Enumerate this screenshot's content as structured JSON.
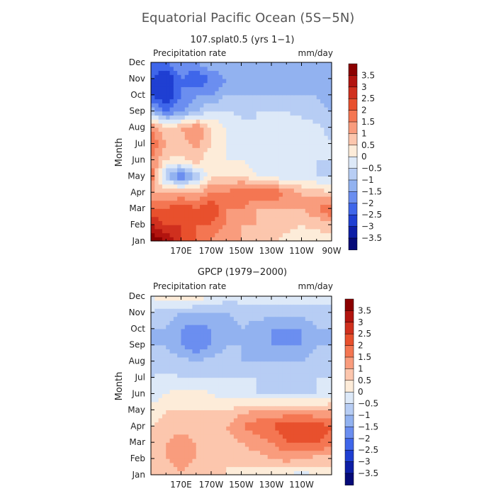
{
  "figure": {
    "title": "Equatorial Pacific Ocean (5S−5N)"
  },
  "colorbar_levels": [
    "3.5",
    "3",
    "2.5",
    "2",
    "1.5",
    "1",
    "0.5",
    "0",
    "−0.5",
    "−1",
    "−1.5",
    "−2",
    "−2.5",
    "−3",
    "−3.5"
  ],
  "colorbar_colors": [
    "#8b0000",
    "#b2140f",
    "#d0301e",
    "#e8502d",
    "#f47652",
    "#f99c7d",
    "#fcc6ad",
    "#fdecd9",
    "#dde9f8",
    "#b7cdf4",
    "#92b2f0",
    "#6b8ef0",
    "#3f66ea",
    "#1f3fd2",
    "#0d1ea6",
    "#050a78"
  ],
  "chart_data": [
    {
      "type": "heatmap",
      "subtitle": "107.splat0.5 (yrs 1−1)",
      "variable_label": "Precipitation rate",
      "units": "mm/day",
      "ylabel": "Month",
      "xlabel": "",
      "x_ticks": [
        "170E",
        "170W",
        "150W",
        "130W",
        "110W",
        "90W"
      ],
      "x_tick_lons": [
        170,
        190,
        210,
        230,
        250,
        270
      ],
      "y_ticks": [
        "Jan",
        "Feb",
        "Mar",
        "Apr",
        "May",
        "Jun",
        "Jul",
        "Aug",
        "Sep",
        "Oct",
        "Nov",
        "Dec"
      ],
      "xlim": [
        150,
        270
      ],
      "ylim": [
        1,
        12
      ],
      "clim": [
        -3.5,
        3.5
      ],
      "x": [
        150,
        160,
        170,
        180,
        190,
        200,
        210,
        220,
        230,
        240,
        250,
        260,
        270
      ],
      "values": [
        [
          4.0,
          3.5,
          2.5,
          2.0,
          1.5,
          1.0,
          1.0,
          0.8,
          0.6,
          0.4,
          0.3,
          0.3,
          0.2
        ],
        [
          3.0,
          2.5,
          2.5,
          2.0,
          2.0,
          1.5,
          1.0,
          1.0,
          0.8,
          0.6,
          0.5,
          0.6,
          0.8
        ],
        [
          2.0,
          2.0,
          2.5,
          2.0,
          2.5,
          1.5,
          1.5,
          1.0,
          1.0,
          1.0,
          1.0,
          1.5,
          2.0
        ],
        [
          1.0,
          1.0,
          1.0,
          1.0,
          1.5,
          1.5,
          2.0,
          2.0,
          2.0,
          1.5,
          1.0,
          0.8,
          0.5
        ],
        [
          2.0,
          -1.0,
          -2.0,
          -1.0,
          0.5,
          0.5,
          0.5,
          0.0,
          -0.2,
          -0.3,
          -0.4,
          -0.5,
          -0.5
        ],
        [
          1.5,
          0.5,
          0.3,
          0.8,
          0.0,
          0.0,
          0.0,
          -0.2,
          -0.3,
          -0.4,
          -0.4,
          -0.5,
          -0.5
        ],
        [
          2.0,
          1.0,
          0.8,
          1.2,
          0.5,
          0.0,
          -0.3,
          -0.3,
          -0.3,
          -0.4,
          -0.4,
          -0.4,
          -0.5
        ],
        [
          1.5,
          0.5,
          1.0,
          1.5,
          0.5,
          0.0,
          -0.4,
          -0.5,
          -0.3,
          -0.3,
          -0.3,
          -0.4,
          -0.6
        ],
        [
          -1.0,
          -2.0,
          -1.5,
          -1.0,
          -0.5,
          -0.5,
          -0.6,
          -0.5,
          -0.5,
          -0.5,
          -0.6,
          -0.8,
          -1.0
        ],
        [
          -2.5,
          -3.0,
          -2.0,
          -1.5,
          -1.5,
          -1.0,
          -1.0,
          -1.0,
          -1.0,
          -1.0,
          -1.0,
          -1.0,
          -1.2
        ],
        [
          -2.5,
          -3.0,
          -2.0,
          -2.5,
          -2.0,
          -1.5,
          -1.5,
          -1.0,
          -1.0,
          -1.0,
          -1.0,
          -1.0,
          -1.5
        ],
        [
          -2.0,
          -2.0,
          -1.5,
          -1.5,
          -1.0,
          -1.0,
          -1.0,
          -1.0,
          -1.0,
          -1.0,
          -1.0,
          -1.0,
          -1.0
        ]
      ]
    },
    {
      "type": "heatmap",
      "subtitle": "GPCP (1979−2000)",
      "variable_label": "Precipitation rate",
      "units": "mm/day",
      "ylabel": "Month",
      "xlabel": "",
      "x_ticks": [
        "170E",
        "170W",
        "150W",
        "130W",
        "110W"
      ],
      "x_tick_lons": [
        170,
        190,
        210,
        230,
        250
      ],
      "y_ticks": [
        "Jan",
        "Feb",
        "Mar",
        "Apr",
        "May",
        "Jun",
        "Jul",
        "Aug",
        "Sep",
        "Oct",
        "Nov",
        "Dec"
      ],
      "xlim": [
        150,
        270
      ],
      "ylim": [
        1,
        12
      ],
      "clim": [
        -3.5,
        3.5
      ],
      "x": [
        150,
        160,
        170,
        180,
        190,
        200,
        210,
        220,
        230,
        240,
        250,
        260,
        270
      ],
      "values": [
        [
          0.5,
          0.8,
          1.0,
          0.8,
          0.5,
          0.5,
          0.3,
          0.2,
          0.0,
          0.0,
          -0.3,
          0.0,
          0.2
        ],
        [
          0.5,
          1.0,
          1.2,
          1.0,
          0.8,
          0.5,
          0.8,
          0.8,
          1.0,
          1.2,
          1.0,
          0.8,
          0.8
        ],
        [
          0.8,
          1.0,
          1.2,
          1.0,
          1.0,
          0.8,
          1.0,
          1.2,
          1.5,
          2.0,
          2.0,
          2.0,
          1.8
        ],
        [
          0.5,
          0.8,
          0.8,
          0.8,
          1.0,
          1.0,
          1.5,
          1.8,
          2.0,
          2.5,
          2.5,
          2.3,
          2.0
        ],
        [
          0.2,
          0.5,
          0.5,
          0.5,
          0.5,
          0.5,
          0.8,
          1.0,
          1.0,
          1.0,
          1.0,
          1.0,
          1.0
        ],
        [
          -0.3,
          0.0,
          0.2,
          0.2,
          0.0,
          -0.3,
          -0.3,
          -0.5,
          -0.5,
          -0.5,
          -0.5,
          -0.5,
          -0.3
        ],
        [
          -0.5,
          -0.3,
          -0.5,
          -0.5,
          -0.5,
          -0.5,
          -0.5,
          -0.5,
          -0.5,
          -0.5,
          -0.5,
          -0.5,
          -0.5
        ],
        [
          -0.8,
          -0.8,
          -0.8,
          -1.0,
          -0.8,
          -0.8,
          -1.0,
          -1.0,
          -1.0,
          -1.0,
          -1.0,
          -0.8,
          -0.8
        ],
        [
          -1.0,
          -1.0,
          -1.5,
          -2.0,
          -1.5,
          -1.0,
          -1.0,
          -1.5,
          -1.5,
          -1.5,
          -1.5,
          -1.0,
          -1.0
        ],
        [
          -1.0,
          -1.0,
          -1.5,
          -1.8,
          -1.5,
          -1.2,
          -1.0,
          -1.2,
          -1.5,
          -1.5,
          -1.5,
          -1.0,
          -1.0
        ],
        [
          -0.5,
          -0.8,
          -1.0,
          -1.0,
          -1.0,
          -1.0,
          -0.8,
          -0.8,
          -0.8,
          -0.8,
          -0.8,
          -0.8,
          -0.8
        ],
        [
          0.0,
          0.3,
          0.5,
          0.3,
          0.0,
          -0.3,
          -0.3,
          -0.3,
          -0.3,
          -0.3,
          -0.3,
          -0.3,
          -0.3
        ]
      ]
    }
  ]
}
